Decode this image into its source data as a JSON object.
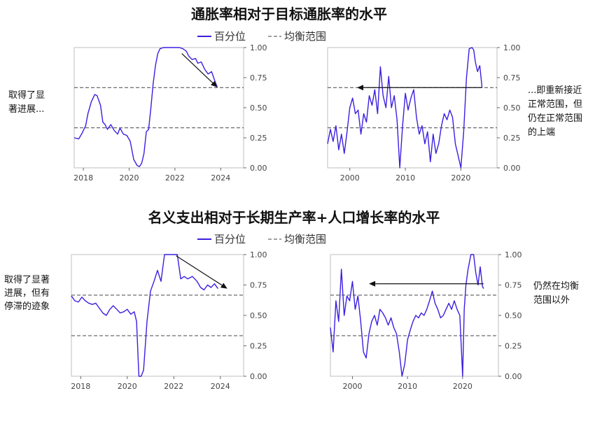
{
  "legend": {
    "series_label": "百分位",
    "band_label": "均衡范围",
    "series_color": "#3a1fe0",
    "band_color": "#444444"
  },
  "rows": [
    {
      "title": "通胀率相对于目标通胀率的水平"
    },
    {
      "title": "名义支出相对于长期生产率+人口增长率的水平"
    }
  ],
  "notes": [
    {
      "lines": [
        "取得了显",
        "著进展..."
      ]
    },
    {
      "lines": [
        "...即重新接近",
        "正常范围，但",
        "仍在正常范围",
        "的上端"
      ]
    },
    {
      "lines": [
        "取得了显著",
        "进展，但有",
        "停滞的迹象"
      ]
    },
    {
      "lines": [
        "仍然在均衡",
        "范围以外"
      ]
    }
  ],
  "chart_data": [
    {
      "type": "line",
      "title": "通胀率相对于目标通胀率的水平",
      "panel": "recent",
      "xlabel": "",
      "ylabel": "",
      "xlim": [
        2017.6,
        2025.0
      ],
      "ylim": [
        0,
        1
      ],
      "xticks": [
        2018,
        2020,
        2022,
        2024
      ],
      "yticks": [
        "0.00",
        "0.25",
        "0.50",
        "0.75",
        "1.00"
      ],
      "equilibrium_band": [
        0.333,
        0.667
      ],
      "arrow": {
        "from": [
          2022.3,
          0.95
        ],
        "to": [
          2023.85,
          0.67
        ]
      },
      "series": [
        {
          "name": "百分位",
          "x": [
            2017.6,
            2017.8,
            2017.95,
            2018.1,
            2018.2,
            2018.35,
            2018.5,
            2018.6,
            2018.75,
            2018.85,
            2018.95,
            2019.05,
            2019.2,
            2019.35,
            2019.5,
            2019.6,
            2019.75,
            2019.9,
            2020.05,
            2020.2,
            2020.35,
            2020.45,
            2020.55,
            2020.65,
            2020.75,
            2020.85,
            2020.95,
            2021.05,
            2021.15,
            2021.25,
            2021.35,
            2021.5,
            2021.65,
            2021.8,
            2022.0,
            2022.2,
            2022.35,
            2022.5,
            2022.6,
            2022.75,
            2022.9,
            2023.0,
            2023.15,
            2023.3,
            2023.45,
            2023.6,
            2023.75,
            2023.85
          ],
          "values": [
            0.25,
            0.24,
            0.29,
            0.35,
            0.45,
            0.55,
            0.61,
            0.6,
            0.52,
            0.38,
            0.36,
            0.32,
            0.36,
            0.31,
            0.28,
            0.33,
            0.28,
            0.27,
            0.22,
            0.07,
            0.02,
            0.01,
            0.04,
            0.12,
            0.3,
            0.32,
            0.5,
            0.7,
            0.85,
            0.95,
            0.99,
            1.0,
            1.0,
            1.0,
            1.0,
            1.0,
            0.99,
            0.97,
            0.93,
            0.9,
            0.91,
            0.87,
            0.88,
            0.82,
            0.78,
            0.8,
            0.72,
            0.67
          ]
        }
      ]
    },
    {
      "type": "line",
      "title": "通胀率相对于目标通胀率的水平",
      "panel": "long",
      "xlabel": "",
      "ylabel": "",
      "xlim": [
        1996,
        2026.5
      ],
      "ylim": [
        0,
        1
      ],
      "xticks": [
        2000,
        2010,
        2020
      ],
      "yticks": [
        "0.00",
        "0.25",
        "0.50",
        "0.75",
        "1.00"
      ],
      "equilibrium_band": [
        0.333,
        0.667
      ],
      "arrow": {
        "from": [
          2023.8,
          0.667
        ],
        "to": [
          2001.3,
          0.667
        ]
      },
      "series": [
        {
          "name": "百分位",
          "x": [
            1996,
            1996.5,
            1997,
            1997.5,
            1998,
            1998.5,
            1999,
            1999.5,
            2000,
            2000.5,
            2001,
            2001.5,
            2002,
            2002.5,
            2003,
            2003.5,
            2004,
            2004.5,
            2005,
            2005.5,
            2006,
            2006.5,
            2007,
            2007.5,
            2008,
            2008.5,
            2009,
            2009.5,
            2010,
            2010.5,
            2011,
            2011.5,
            2012,
            2012.5,
            2013,
            2013.5,
            2014,
            2014.5,
            2015,
            2015.5,
            2016,
            2016.5,
            2017,
            2017.5,
            2018,
            2018.5,
            2019,
            2019.5,
            2020,
            2020.5,
            2021,
            2021.5,
            2022,
            2022.3,
            2022.6,
            2023,
            2023.4,
            2023.8
          ],
          "values": [
            0.2,
            0.32,
            0.22,
            0.35,
            0.15,
            0.28,
            0.12,
            0.3,
            0.5,
            0.58,
            0.45,
            0.48,
            0.28,
            0.45,
            0.38,
            0.6,
            0.52,
            0.65,
            0.45,
            0.84,
            0.6,
            0.5,
            0.76,
            0.5,
            0.6,
            0.4,
            0.0,
            0.35,
            0.62,
            0.48,
            0.58,
            0.65,
            0.42,
            0.28,
            0.35,
            0.2,
            0.3,
            0.05,
            0.28,
            0.12,
            0.2,
            0.35,
            0.45,
            0.4,
            0.48,
            0.42,
            0.2,
            0.1,
            0.0,
            0.3,
            0.75,
            0.99,
            1.0,
            0.98,
            0.88,
            0.8,
            0.85,
            0.67
          ]
        }
      ]
    },
    {
      "type": "line",
      "title": "名义支出相对于长期生产率+人口增长率的水平",
      "panel": "recent",
      "xlabel": "",
      "ylabel": "",
      "xlim": [
        2017.6,
        2025.0
      ],
      "ylim": [
        0,
        1
      ],
      "xticks": [
        2018,
        2020,
        2022,
        2024
      ],
      "yticks": [
        "0.00",
        "0.25",
        "0.50",
        "0.75",
        "1.00"
      ],
      "equilibrium_band": [
        0.333,
        0.667
      ],
      "arrow": {
        "from": [
          2022.1,
          0.99
        ],
        "to": [
          2024.3,
          0.72
        ]
      },
      "series": [
        {
          "name": "百分位",
          "x": [
            2017.6,
            2017.75,
            2017.9,
            2018.05,
            2018.2,
            2018.35,
            2018.5,
            2018.65,
            2018.8,
            2018.95,
            2019.1,
            2019.25,
            2019.4,
            2019.55,
            2019.7,
            2019.85,
            2020.0,
            2020.15,
            2020.3,
            2020.4,
            2020.5,
            2020.6,
            2020.7,
            2020.85,
            2021.0,
            2021.15,
            2021.3,
            2021.45,
            2021.6,
            2021.8,
            2022.0,
            2022.15,
            2022.3,
            2022.45,
            2022.6,
            2022.8,
            2023.0,
            2023.15,
            2023.3,
            2023.45,
            2023.6,
            2023.75,
            2023.9
          ],
          "values": [
            0.66,
            0.62,
            0.61,
            0.65,
            0.62,
            0.6,
            0.59,
            0.6,
            0.56,
            0.52,
            0.5,
            0.55,
            0.58,
            0.55,
            0.52,
            0.53,
            0.55,
            0.51,
            0.53,
            0.45,
            0.0,
            0.0,
            0.05,
            0.45,
            0.7,
            0.78,
            0.87,
            0.78,
            1.0,
            1.0,
            1.0,
            1.0,
            0.8,
            0.82,
            0.8,
            0.82,
            0.78,
            0.73,
            0.71,
            0.75,
            0.73,
            0.76,
            0.72
          ]
        }
      ]
    },
    {
      "type": "line",
      "title": "名义支出相对于长期生产率+人口增长率的水平",
      "panel": "long",
      "xlabel": "",
      "ylabel": "",
      "xlim": [
        1996,
        2026.5
      ],
      "ylim": [
        0,
        1
      ],
      "xticks": [
        2000,
        2010,
        2020
      ],
      "yticks": [
        "0.00",
        "0.25",
        "0.50",
        "0.75",
        "1.00"
      ],
      "equilibrium_band": [
        0.333,
        0.667
      ],
      "arrow": {
        "from": [
          2023.8,
          0.76
        ],
        "to": [
          2003.0,
          0.76
        ]
      },
      "series": [
        {
          "name": "百分位",
          "x": [
            1996,
            1996.5,
            1997,
            1997.5,
            1998,
            1998.5,
            1999,
            1999.5,
            2000,
            2000.5,
            2001,
            2001.5,
            2002,
            2002.5,
            2003,
            2003.5,
            2004,
            2004.5,
            2005,
            2005.5,
            2006,
            2006.5,
            2007,
            2007.5,
            2008,
            2008.5,
            2009,
            2009.5,
            2010,
            2010.5,
            2011,
            2011.5,
            2012,
            2012.5,
            2013,
            2013.5,
            2014,
            2014.5,
            2015,
            2015.5,
            2016,
            2016.5,
            2017,
            2017.5,
            2018,
            2018.5,
            2019,
            2019.5,
            2020,
            2020.3,
            2020.6,
            2021,
            2021.5,
            2022,
            2022.4,
            2022.8,
            2023.2,
            2023.6,
            2023.8
          ],
          "values": [
            0.4,
            0.2,
            0.62,
            0.45,
            0.88,
            0.5,
            0.66,
            0.62,
            0.78,
            0.55,
            0.66,
            0.45,
            0.2,
            0.15,
            0.35,
            0.45,
            0.5,
            0.42,
            0.55,
            0.52,
            0.48,
            0.42,
            0.48,
            0.4,
            0.35,
            0.2,
            0.0,
            0.1,
            0.3,
            0.38,
            0.45,
            0.5,
            0.48,
            0.52,
            0.5,
            0.55,
            0.62,
            0.7,
            0.6,
            0.55,
            0.48,
            0.5,
            0.55,
            0.6,
            0.55,
            0.62,
            0.55,
            0.5,
            0.0,
            0.55,
            0.75,
            0.88,
            1.0,
            1.0,
            0.85,
            0.75,
            0.9,
            0.74,
            0.72
          ]
        }
      ]
    }
  ]
}
